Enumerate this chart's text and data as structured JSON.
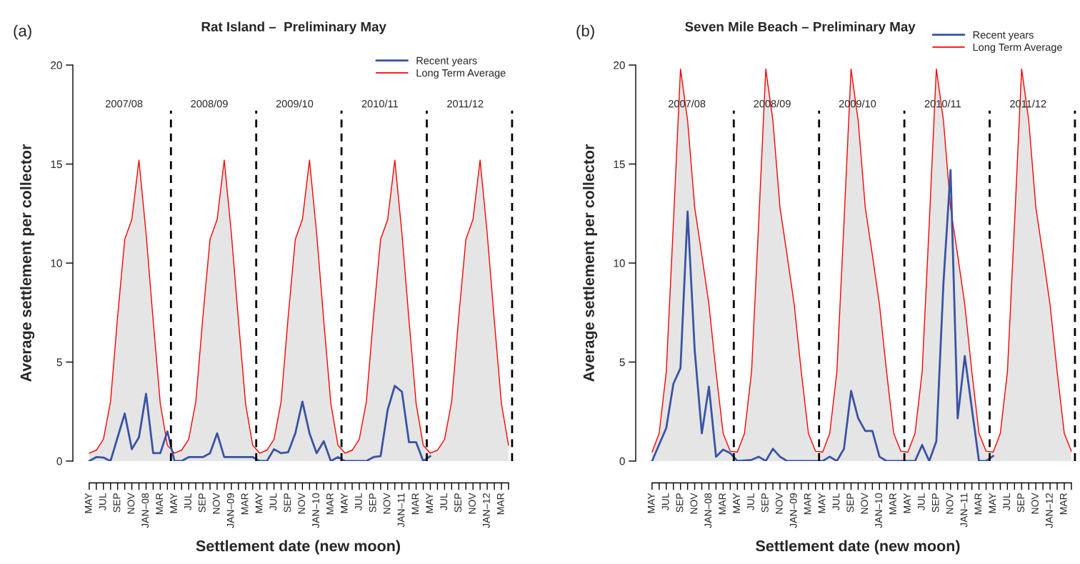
{
  "chart_data": [
    {
      "type": "line",
      "subtitle": "(a)",
      "title": "Rat Island –  Preliminary May",
      "xlabel": "Settlement date (new moon)",
      "ylabel": "Average settlement per collector",
      "categories": [
        "MAY",
        null,
        "JUL",
        null,
        "SEP",
        null,
        "NOV",
        null,
        "JAN–08",
        null,
        "MAR",
        null,
        "MAY",
        null,
        "JUL",
        null,
        "SEP",
        null,
        "NOV",
        null,
        "JAN–09",
        null,
        "MAR",
        null,
        "MAY",
        null,
        "JUL",
        null,
        "SEP",
        null,
        "NOV",
        null,
        "JAN–10",
        null,
        "MAR",
        null,
        "MAY",
        null,
        "JUL",
        null,
        "SEP",
        null,
        "NOV",
        null,
        "JAN–11",
        null,
        "MAR",
        null,
        "MAY",
        null,
        "JUL",
        null,
        "SEP",
        null,
        "NOV",
        null,
        "JAN–12",
        null,
        "MAR",
        null
      ],
      "series": [
        {
          "name": "Recent years",
          "type": "line",
          "color": "#3953a4",
          "values": [
            0,
            0.2,
            0.18,
            0,
            1.2,
            2.4,
            0.6,
            1.2,
            3.4,
            0.4,
            0.4,
            1.5,
            0,
            0,
            0.2,
            0.2,
            0.2,
            0.4,
            1.4,
            0.2,
            0.2,
            0.2,
            0.2,
            0.2,
            0,
            0,
            0.6,
            0.4,
            0.45,
            1.4,
            3.0,
            1.4,
            0.4,
            1.0,
            0,
            0.2,
            0,
            0,
            0,
            0,
            0.2,
            0.25,
            2.6,
            3.8,
            3.5,
            0.95,
            0.95,
            0,
            0.25,
            null,
            null,
            null,
            null,
            null,
            null,
            null,
            null,
            null,
            null,
            null
          ]
        },
        {
          "name": "Long Term Average",
          "type": "area",
          "color": "#ff0000",
          "values": [
            0.4,
            0.55,
            1.1,
            3.0,
            7.3,
            11.2,
            12.2,
            15.2,
            11.5,
            7.1,
            2.9,
            0.8,
            0.4,
            0.55,
            1.1,
            3.0,
            7.3,
            11.2,
            12.2,
            15.2,
            11.5,
            7.1,
            2.9,
            0.8,
            0.4,
            0.55,
            1.1,
            3.0,
            7.3,
            11.2,
            12.2,
            15.2,
            11.5,
            7.1,
            2.9,
            0.8,
            0.4,
            0.55,
            1.1,
            3.0,
            7.3,
            11.2,
            12.2,
            15.2,
            11.5,
            7.1,
            2.9,
            0.8,
            0.4,
            0.55,
            1.1,
            3.0,
            7.3,
            11.2,
            12.2,
            15.2,
            11.5,
            7.1,
            2.9,
            0.8
          ]
        }
      ],
      "ylim": [
        0,
        20
      ],
      "yticks": [
        0,
        5,
        10,
        15,
        20
      ],
      "annotations": [
        "2007/08",
        "2008/09",
        "2009/10",
        "2010/11",
        "2011/12"
      ],
      "legend": "top right",
      "grid": false,
      "marker": "none",
      "line_style": "solid"
    },
    {
      "type": "line",
      "subtitle": "(b)",
      "title": "Seven Mile Beach – Preliminary May",
      "xlabel": "Settlement date (new moon)",
      "ylabel": "Average settlement per collector",
      "categories": [
        "MAY",
        null,
        "JUL",
        null,
        "SEP",
        null,
        "NOV",
        null,
        "JAN–08",
        null,
        "MAR",
        null,
        "MAY",
        null,
        "JUL",
        null,
        "SEP",
        null,
        "NOV",
        null,
        "JAN–09",
        null,
        "MAR",
        null,
        "MAY",
        null,
        "JUL",
        null,
        "SEP",
        null,
        "NOV",
        null,
        "JAN–10",
        null,
        "MAR",
        null,
        "MAY",
        null,
        "JUL",
        null,
        "SEP",
        null,
        "NOV",
        null,
        "JAN–11",
        null,
        "MAR",
        null,
        "MAY",
        null,
        "JUL",
        null,
        "SEP",
        null,
        "NOV",
        null,
        "JAN–12",
        null,
        "MAR",
        null
      ],
      "series": [
        {
          "name": "Recent years",
          "type": "line",
          "color": "#3953a4",
          "values": [
            0,
            0.84,
            1.67,
            3.9,
            4.7,
            12.6,
            5.6,
            1.4,
            3.76,
            0.22,
            0.58,
            0.4,
            0,
            0.03,
            0.06,
            0.22,
            0,
            0.62,
            0.22,
            0,
            0,
            0,
            0,
            0,
            0,
            0.22,
            0,
            0.62,
            3.54,
            2.16,
            1.52,
            1.52,
            0.22,
            0,
            0,
            0,
            0,
            0,
            0.81,
            0,
            1.0,
            9.0,
            14.7,
            2.16,
            5.3,
            2.64,
            0,
            0,
            0.26,
            null,
            null,
            null,
            null,
            null,
            null,
            null,
            null,
            null,
            null,
            null
          ]
        },
        {
          "name": "Long Term Average",
          "type": "area",
          "color": "#ff0000",
          "values": [
            0.45,
            1.4,
            4.5,
            12,
            19.8,
            17.2,
            12.8,
            10.4,
            7.9,
            4.5,
            1.4,
            0.5,
            0.45,
            1.4,
            4.5,
            12,
            19.8,
            17.2,
            12.8,
            10.4,
            7.9,
            4.5,
            1.4,
            0.5,
            0.45,
            1.4,
            4.5,
            12,
            19.8,
            17.2,
            12.8,
            10.4,
            7.9,
            4.5,
            1.4,
            0.5,
            0.45,
            1.4,
            4.5,
            12,
            19.8,
            17.2,
            12.8,
            10.4,
            7.9,
            4.5,
            1.4,
            0.5,
            0.45,
            1.4,
            4.5,
            12,
            19.8,
            17.2,
            12.8,
            10.4,
            7.9,
            4.5,
            1.4,
            0.5
          ]
        }
      ],
      "ylim": [
        0,
        20
      ],
      "yticks": [
        0,
        5,
        10,
        15,
        20
      ],
      "annotations": [
        "2007/08",
        "2008/09",
        "2009/10",
        "2010/11",
        "2011/12"
      ],
      "legend": "top right",
      "grid": false,
      "marker": "none",
      "line_style": "solid"
    }
  ]
}
